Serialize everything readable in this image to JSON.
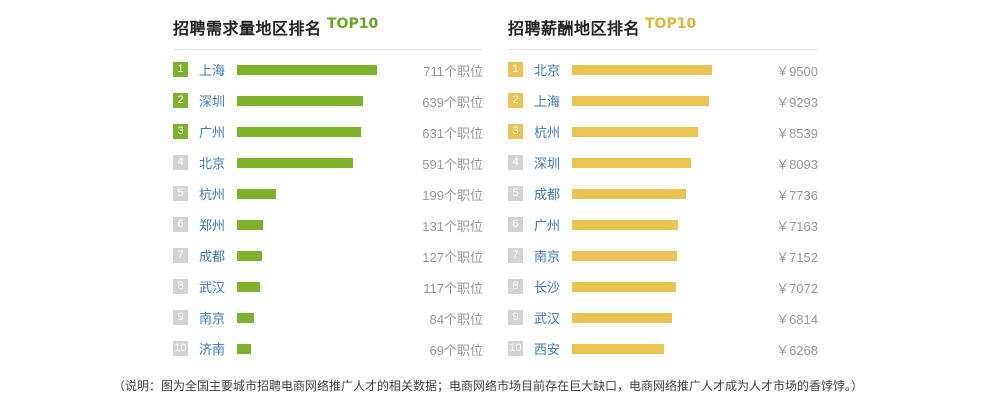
{
  "colors": {
    "demand_bar": "#7cb32b",
    "demand_badge": "#7cb32b",
    "salary_bar": "#ebc452",
    "salary_badge": "#ebc452",
    "inactive_badge": "#d4d4d4",
    "demand_tag": "#6aa521",
    "salary_tag": "#e3b63a"
  },
  "demand": {
    "title": "招聘需求量地区排名",
    "tag": "TOP10",
    "unit": "个职位",
    "rows": [
      {
        "rank": "1",
        "city": "上海",
        "value": 711
      },
      {
        "rank": "2",
        "city": "深圳",
        "value": 639
      },
      {
        "rank": "3",
        "city": "广州",
        "value": 631
      },
      {
        "rank": "4",
        "city": "北京",
        "value": 591
      },
      {
        "rank": "5",
        "city": "杭州",
        "value": 199
      },
      {
        "rank": "6",
        "city": "郑州",
        "value": 131
      },
      {
        "rank": "7",
        "city": "成都",
        "value": 127
      },
      {
        "rank": "8",
        "city": "武汉",
        "value": 117
      },
      {
        "rank": "9",
        "city": "南京",
        "value": 84
      },
      {
        "rank": "10",
        "city": "济南",
        "value": 69
      }
    ]
  },
  "salary": {
    "title": "招聘薪酬地区排名",
    "tag": "TOP10",
    "prefix": "￥",
    "rows": [
      {
        "rank": "1",
        "city": "北京",
        "value": 9500
      },
      {
        "rank": "2",
        "city": "上海",
        "value": 9293
      },
      {
        "rank": "3",
        "city": "杭州",
        "value": 8539
      },
      {
        "rank": "4",
        "city": "深圳",
        "value": 8093
      },
      {
        "rank": "5",
        "city": "成都",
        "value": 7736
      },
      {
        "rank": "6",
        "city": "广州",
        "value": 7163
      },
      {
        "rank": "7",
        "city": "南京",
        "value": 7152
      },
      {
        "rank": "8",
        "city": "长沙",
        "value": 7072
      },
      {
        "rank": "9",
        "city": "武汉",
        "value": 6814
      },
      {
        "rank": "10",
        "city": "西安",
        "value": 6268
      }
    ]
  },
  "chart_data": [
    {
      "type": "bar",
      "title": "招聘需求量地区排名",
      "categories": [
        "上海",
        "深圳",
        "广州",
        "北京",
        "杭州",
        "郑州",
        "成都",
        "武汉",
        "南京",
        "济南"
      ],
      "values": [
        711,
        639,
        631,
        591,
        199,
        131,
        127,
        117,
        84,
        69
      ]
    },
    {
      "type": "bar",
      "title": "招聘薪酬地区排名",
      "categories": [
        "北京",
        "上海",
        "杭州",
        "深圳",
        "成都",
        "广州",
        "南京",
        "长沙",
        "武汉",
        "西安"
      ],
      "values": [
        9500,
        9293,
        8539,
        8093,
        7736,
        7163,
        7152,
        7072,
        6814,
        6268
      ]
    }
  ],
  "footnote": "（说明：图为全国主要城市招聘电商网络推广人才的相关数据；电商网络市场目前存在巨大缺口，电商网络推广人才成为人才市场的香饽饽。）"
}
